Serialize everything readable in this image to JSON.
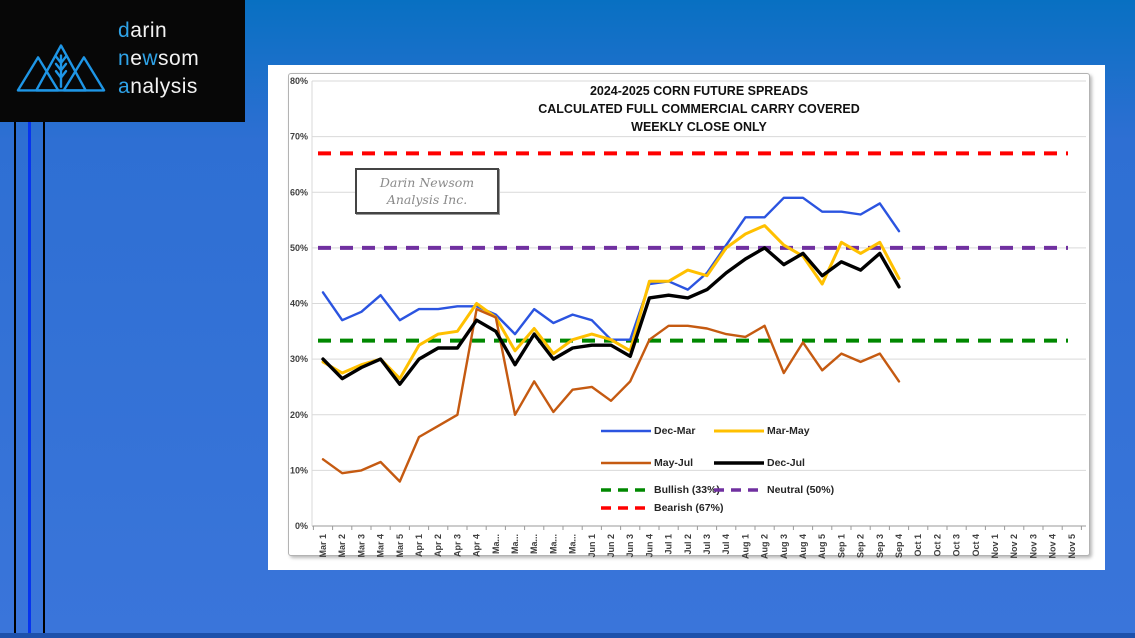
{
  "logo": {
    "d": "d",
    "arin": "arin",
    "n": "n",
    "e": "e",
    "w": "w",
    "som": "som",
    "a": "a",
    "nalysis": "nalysis"
  },
  "colors": {
    "bg_top": "#0870c2",
    "bg_mid": "#2e6fd3",
    "bg_bot": "#3a75da",
    "bottom_bar": "#1d51ab",
    "line_blue": "#0633ee",
    "logo_blue": "#2fa3e8",
    "grid": "#d9d9d9",
    "axis": "#9a9a9a"
  },
  "annotation": {
    "line1": "Darin Newsom",
    "line2": "Analysis Inc."
  },
  "chart_data": {
    "type": "line",
    "title_lines": [
      "2024-2025 CORN FUTURE SPREADS",
      "CALCULATED FULL COMMERCIAL CARRY COVERED",
      "WEEKLY CLOSE ONLY"
    ],
    "ylim": [
      0,
      80
    ],
    "grid": true,
    "legend_position": "inside-bottom-center",
    "y_ticks": [
      "0%",
      "10%",
      "20%",
      "30%",
      "40%",
      "50%",
      "60%",
      "70%",
      "80%"
    ],
    "categories": [
      "Mar 1",
      "Mar 2",
      "Mar 3",
      "Mar 4",
      "Mar 5",
      "Apr 1",
      "Apr 2",
      "Apr 3",
      "Apr 4",
      "Ma...",
      "Ma...",
      "Ma...",
      "Ma...",
      "Ma...",
      "Jun 1",
      "Jun 2",
      "Jun 3",
      "Jun 4",
      "Jul 1",
      "Jul 2",
      "Jul 3",
      "Jul 4",
      "Aug 1",
      "Aug 2",
      "Aug 3",
      "Aug 4",
      "Aug 5",
      "Sep 1",
      "Sep 2",
      "Sep 3",
      "Sep 4",
      "Oct 1",
      "Oct 2",
      "Oct 3",
      "Oct 4",
      "Nov 1",
      "Nov 2",
      "Nov 3",
      "Nov 4",
      "Nov 5"
    ],
    "series": [
      {
        "name": "Dec-Mar",
        "color": "#2b54e0",
        "lw": 2.4,
        "values": [
          42,
          37,
          38.5,
          41.5,
          37,
          39,
          39,
          39.5,
          39.5,
          38,
          34.5,
          39,
          36.5,
          38,
          37,
          33.5,
          33.5,
          43.5,
          44,
          42.5,
          45.5,
          50.5,
          55.5,
          55.5,
          59,
          59,
          56.5,
          56.5,
          56,
          58,
          53
        ]
      },
      {
        "name": "Mar-May",
        "color": "#ffc000",
        "lw": 3,
        "values": [
          29.5,
          27.5,
          29,
          30,
          26.5,
          32.5,
          34.5,
          35,
          40,
          37.5,
          31.5,
          35.5,
          31,
          33.5,
          34.5,
          33.5,
          31.5,
          44,
          44,
          46,
          45,
          50,
          52.5,
          54,
          50.5,
          48.5,
          43.5,
          51,
          49,
          51,
          44.5
        ]
      },
      {
        "name": "May-Jul",
        "color": "#c55a11",
        "lw": 2.4,
        "values": [
          12,
          9.5,
          10,
          11.5,
          8,
          16,
          18,
          20,
          39,
          37.5,
          20,
          26,
          20.5,
          24.5,
          25,
          22.5,
          26,
          33.5,
          36,
          36,
          35.5,
          34.5,
          34,
          36,
          27.5,
          33,
          28,
          31,
          29.5,
          31,
          26
        ]
      },
      {
        "name": "Dec-Jul",
        "color": "#000000",
        "lw": 3.4,
        "values": [
          30,
          26.5,
          28.5,
          30,
          25.5,
          30,
          32,
          32,
          37,
          35,
          29,
          34.5,
          30,
          32,
          32.5,
          32.5,
          30.5,
          41,
          41.5,
          41,
          42.5,
          45.5,
          48,
          50,
          47,
          49,
          45,
          47.5,
          46,
          49,
          43
        ]
      },
      {
        "name": "Bullish (33%)",
        "color": "#008800",
        "lw": 4,
        "ref": 33.33,
        "dash": "13 9"
      },
      {
        "name": "Neutral (50%)",
        "color": "#7030a0",
        "lw": 4,
        "ref": 50,
        "dash": "13 9"
      },
      {
        "name": "Bearish (67%)",
        "color": "#ff0000",
        "lw": 4,
        "ref": 67,
        "dash": "13 9"
      }
    ],
    "legend_rows": [
      [
        0,
        1
      ],
      [
        2,
        3
      ],
      [
        4,
        5
      ],
      [
        6
      ]
    ]
  }
}
